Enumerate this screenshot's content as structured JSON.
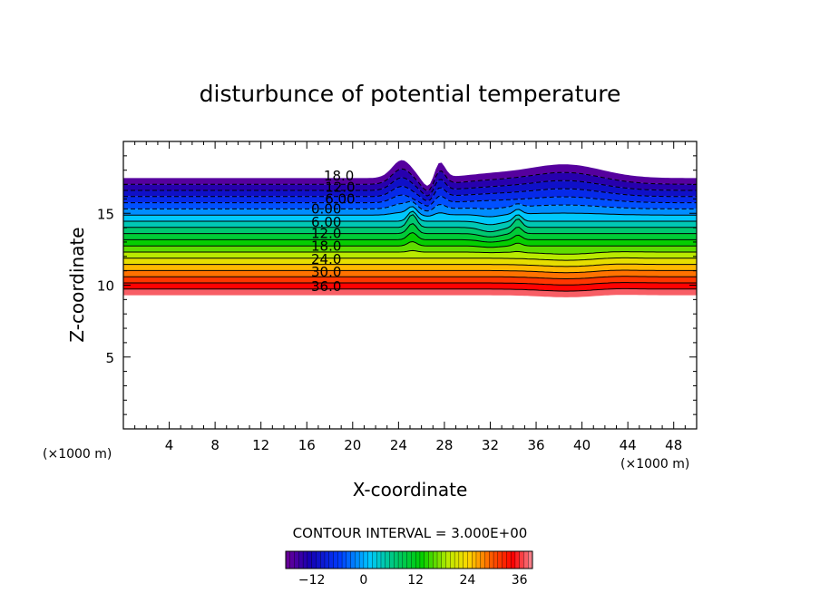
{
  "chart_data": {
    "type": "contour",
    "title": "disturbunce of potential temperature",
    "xlabel": "X-coordinate",
    "ylabel": "Z-coordinate",
    "x_unit_label": "(×1000 m)",
    "z_unit_label": "(×1000 m)",
    "xlim": [
      0,
      50
    ],
    "ylim": [
      0,
      20
    ],
    "x_ticks": [
      4,
      8,
      12,
      16,
      20,
      24,
      28,
      32,
      36,
      40,
      44,
      48
    ],
    "y_ticks": [
      5,
      10,
      15
    ],
    "contour_interval_text": "CONTOUR INTERVAL = 3.000E+00",
    "contour_interval": 3.0,
    "levels": [
      -18,
      -15,
      -12,
      -9,
      -6,
      -3,
      0,
      3,
      6,
      9,
      12,
      15,
      18,
      21,
      24,
      27,
      30,
      33,
      36,
      39
    ],
    "contour_labels": [
      {
        "text": "18.0",
        "x": 18.8,
        "z": 17.6
      },
      {
        "text": "12.0",
        "x": 18.9,
        "z": 16.8
      },
      {
        "text": "6.00",
        "x": 18.9,
        "z": 16.0
      },
      {
        "text": "0.00",
        "x": 17.7,
        "z": 15.3
      },
      {
        "text": "6.00",
        "x": 17.7,
        "z": 14.4
      },
      {
        "text": "12.0",
        "x": 17.7,
        "z": 13.6
      },
      {
        "text": "18.0",
        "x": 17.7,
        "z": 12.7
      },
      {
        "text": "24.0",
        "x": 17.7,
        "z": 11.8
      },
      {
        "text": "30.0",
        "x": 17.7,
        "z": 10.9
      },
      {
        "text": "36.0",
        "x": 17.7,
        "z": 9.9
      }
    ],
    "colorbar": {
      "min": -18,
      "max": 39,
      "tick_labels": [
        "−12",
        "0",
        "12",
        "24",
        "36"
      ],
      "tick_values": [
        -12,
        0,
        12,
        24,
        36
      ]
    },
    "grid": false,
    "colormap": "rainbow (purple → blue → cyan → green → yellow → orange → red → pink)"
  }
}
